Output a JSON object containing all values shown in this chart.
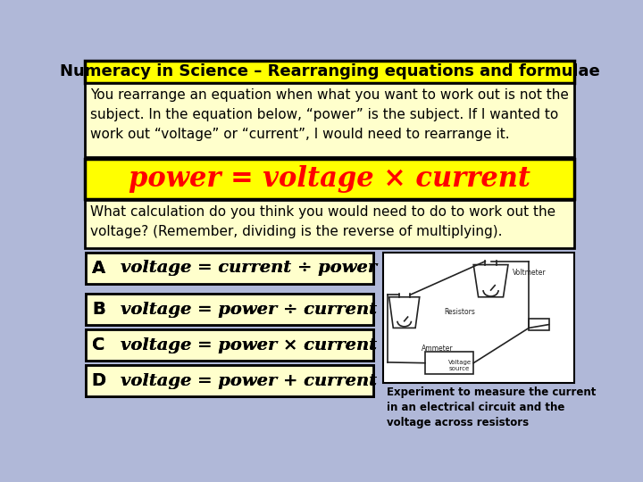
{
  "title": "Numeracy in Science – Rearranging equations and formulae",
  "intro_text": "You rearrange an equation when what you want to work out is not the\nsubject. In the equation below, “power” is the subject. If I wanted to\nwork out “voltage” or “current”, I would need to rearrange it.",
  "main_equation": "power = voltage × current",
  "question_text": "What calculation do you think you would need to do to work out the\nvoltage? (Remember, dividing is the reverse of multiplying).",
  "options": [
    {
      "label": "A",
      "eq": "voltage = current ÷ power"
    },
    {
      "label": "B",
      "eq": "voltage = power ÷ current"
    },
    {
      "label": "C",
      "eq": "voltage = power × current"
    },
    {
      "label": "D",
      "eq": "voltage = power + current"
    }
  ],
  "caption": "Experiment to measure the current\nin an electrical circuit and the\nvoltage across resistors",
  "bg_color": "#b0b8d8",
  "title_bg": "#ffff00",
  "title_border": "#000000",
  "box_bg": "#ffffcc",
  "box_border": "#000000",
  "white_bg": "#ffffff",
  "eq_color": "#ff0000",
  "text_color": "#000000",
  "title_color": "#000000"
}
